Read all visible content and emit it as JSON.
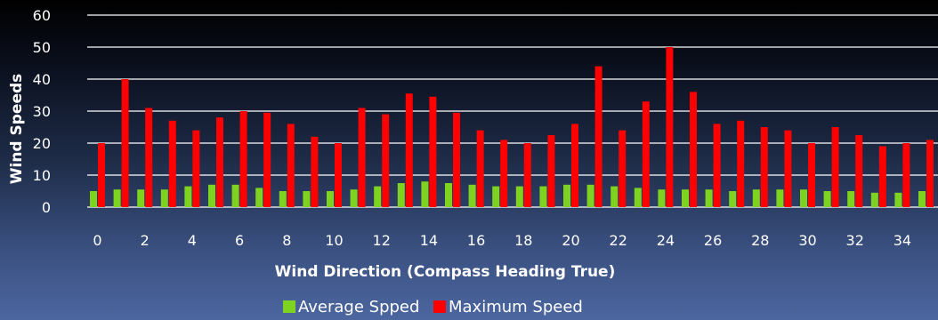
{
  "chart_data": {
    "type": "bar",
    "xlabel": "Wind Direction (Compass Heading True)",
    "ylabel": "Wind Speeds",
    "ylim": [
      0,
      60
    ],
    "yticks": [
      0,
      10,
      20,
      30,
      40,
      50,
      60
    ],
    "categories": [
      0,
      1,
      2,
      3,
      4,
      5,
      6,
      7,
      8,
      9,
      10,
      11,
      12,
      13,
      14,
      15,
      16,
      17,
      18,
      19,
      20,
      21,
      22,
      23,
      24,
      25,
      26,
      27,
      28,
      29,
      30,
      31,
      32,
      33,
      34,
      35
    ],
    "xtick_labels": [
      "0",
      "2",
      "4",
      "6",
      "8",
      "10",
      "12",
      "14",
      "16",
      "18",
      "20",
      "22",
      "24",
      "26",
      "28",
      "30",
      "32",
      "34"
    ],
    "grid": true,
    "legend_position": "bottom",
    "series": [
      {
        "name": "Average Spped",
        "color": "#7ed321",
        "values": [
          5,
          5.5,
          5.5,
          5.5,
          6.5,
          7,
          7,
          6,
          5,
          5,
          5,
          5.5,
          6.5,
          7.5,
          8,
          7.5,
          7,
          6.5,
          6.5,
          6.5,
          7,
          7,
          6.5,
          6,
          5.5,
          5.5,
          5.5,
          5,
          5.5,
          5.5,
          5.5,
          5,
          5,
          4.5,
          4.5,
          5
        ]
      },
      {
        "name": "Maximum Speed",
        "color": "#ff0000",
        "values": [
          20,
          40,
          31,
          27,
          24,
          28,
          30,
          29.5,
          26,
          22,
          20,
          31,
          29,
          35.5,
          34.5,
          29.5,
          24,
          21,
          20,
          22.5,
          26,
          44,
          24,
          33,
          50,
          36,
          26,
          27,
          25,
          24,
          20,
          25,
          22.5,
          19,
          20,
          21
        ]
      }
    ]
  }
}
